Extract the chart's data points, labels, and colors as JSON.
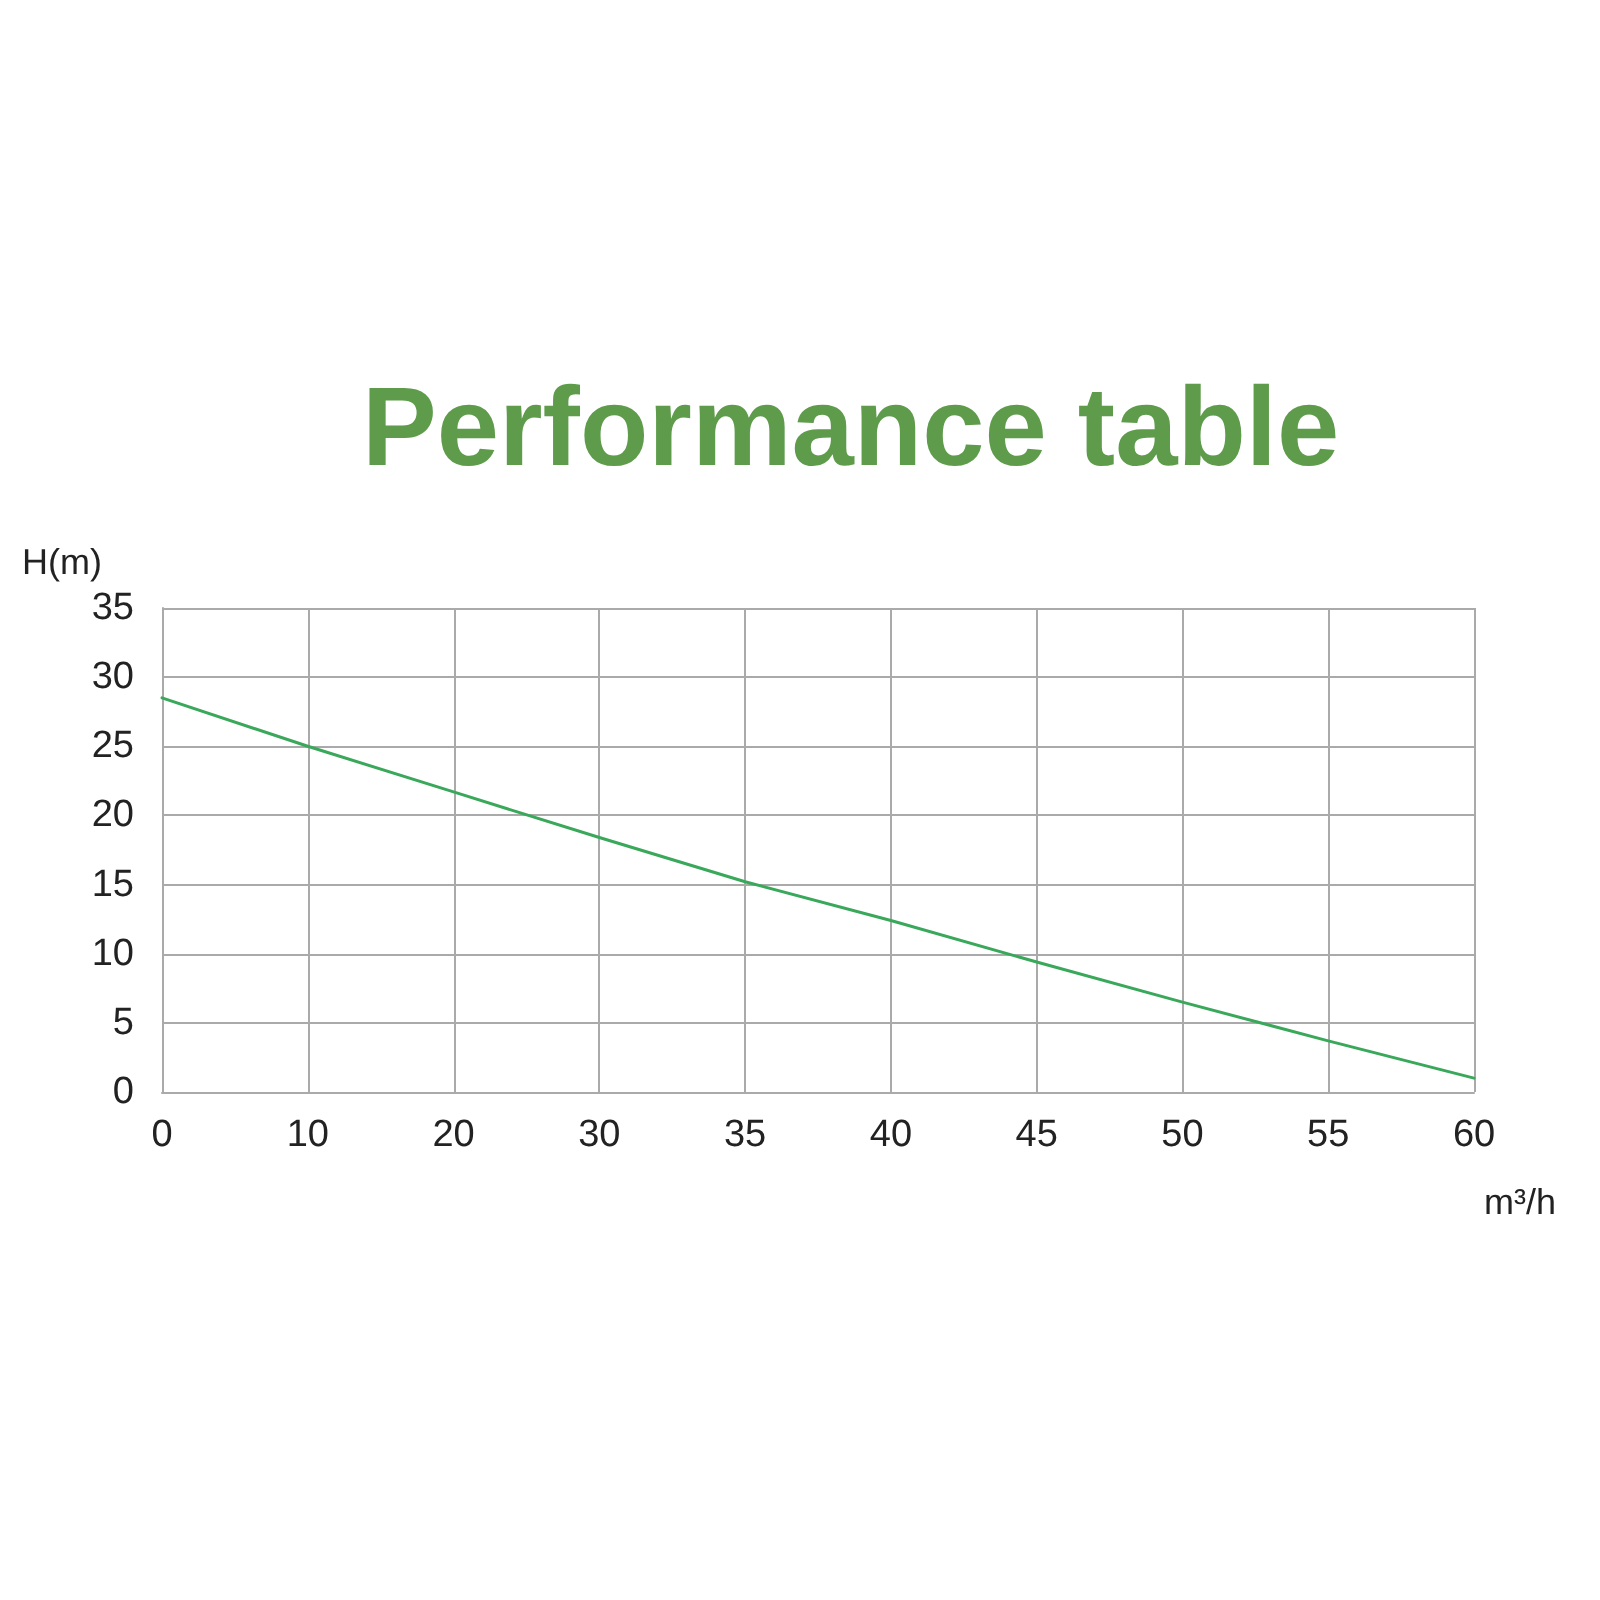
{
  "chart_data": {
    "type": "line",
    "title": "Performance table",
    "xlabel": "m³/h",
    "ylabel": "H(m)",
    "categories": [
      "0",
      "10",
      "20",
      "30",
      "35",
      "40",
      "45",
      "50",
      "55",
      "60"
    ],
    "series": [
      {
        "color": "#3aa85a",
        "values": [
          28.5,
          25.0,
          21.7,
          18.4,
          15.2,
          12.4,
          9.4,
          6.5,
          3.7,
          1.0
        ]
      }
    ],
    "ylim": [
      0,
      35
    ],
    "yticks": [
      0,
      5,
      10,
      15,
      20,
      25,
      30,
      35
    ],
    "grid": true,
    "marker": "none",
    "line_style": "solid"
  }
}
